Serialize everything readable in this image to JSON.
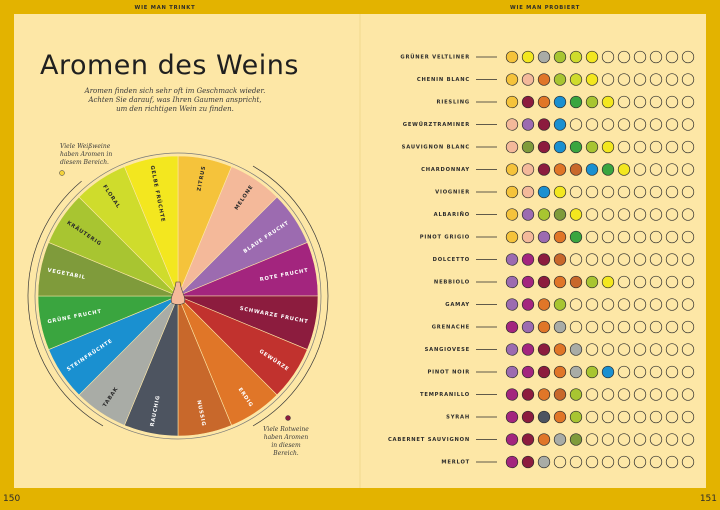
{
  "header": {
    "left": "WIE MAN TRINKT",
    "right": "WIE MAN PROBIERT"
  },
  "page_numbers": [
    "150",
    "151"
  ],
  "title": "Aromen des Weins",
  "subtitle": [
    "Aromen finden sich sehr oft im Geschmack wieder.",
    "Achten Sie darauf, was Ihren Gaumen anspricht,",
    "um den richtigen Wein zu finden."
  ],
  "notes": [
    {
      "lines": [
        "Viele Weißweine",
        "haben Aromen in",
        "diesem Bereich."
      ],
      "color": "#f3d23a"
    },
    {
      "lines": [
        "Viele Rotweine",
        "haben Aromen",
        "in diesem",
        "Bereich."
      ],
      "color": "#8c1c3e"
    }
  ],
  "wheel": {
    "segments": [
      {
        "label": "ZITRUS",
        "color": "#f5c33b"
      },
      {
        "label": "MELONE",
        "color": "#f4b99a"
      },
      {
        "label": "BLAUE FRUCHT",
        "color": "#9c6bb0"
      },
      {
        "label": "ROTE FRUCHT",
        "color": "#a3257e"
      },
      {
        "label": "SCHWARZE FRUCHT",
        "color": "#8c1c3e"
      },
      {
        "label": "GEWÜRZE",
        "color": "#c1322e"
      },
      {
        "label": "ERDIG",
        "color": "#e07628"
      },
      {
        "label": "NUSSIG",
        "color": "#c8682b"
      },
      {
        "label": "RAUCHIG",
        "color": "#4d5460"
      },
      {
        "label": "TABAK",
        "color": "#a9aca6"
      },
      {
        "label": "STEINFRÜCHTE",
        "color": "#1a90d0"
      },
      {
        "label": "GRÜNE FRUCHT",
        "color": "#3aa53f"
      },
      {
        "label": "VEGETABIL",
        "color": "#7f9b3b"
      },
      {
        "label": "KRÄUTERIG",
        "color": "#a8c531"
      },
      {
        "label": "FLORAL",
        "color": "#cfdc2c"
      },
      {
        "label": "GELBE FRÜCHTE",
        "color": "#f3e71f"
      }
    ]
  },
  "wines": [
    {
      "name": "GRÜNER VELTLINER",
      "dots": [
        "#f5c33b",
        "#f3e71f",
        "#a9aca6",
        "#a8c531",
        "#cfdc2c",
        "#f3e71f",
        null,
        null,
        null,
        null,
        null,
        null
      ]
    },
    {
      "name": "CHENIN BLANC",
      "dots": [
        "#f5c33b",
        "#f4b99a",
        "#e07628",
        "#a8c531",
        "#cfdc2c",
        "#f3e71f",
        null,
        null,
        null,
        null,
        null,
        null
      ]
    },
    {
      "name": "RIESLING",
      "dots": [
        "#f5c33b",
        "#8c1c3e",
        "#e07628",
        "#1a90d0",
        "#3aa53f",
        "#a8c531",
        "#f3e71f",
        null,
        null,
        null,
        null,
        null
      ]
    },
    {
      "name": "GEWÜRZTRAMINER",
      "dots": [
        "#f4b99a",
        "#9c6bb0",
        "#8c1c3e",
        "#1a90d0",
        null,
        null,
        null,
        null,
        null,
        null,
        null,
        null
      ]
    },
    {
      "name": "SAUVIGNON BLANC",
      "dots": [
        "#f4b99a",
        "#7f9b3b",
        "#8c1c3e",
        "#1a90d0",
        "#3aa53f",
        "#a8c531",
        "#f3e71f",
        null,
        null,
        null,
        null,
        null
      ]
    },
    {
      "name": "CHARDONNAY",
      "dots": [
        "#f5c33b",
        "#f4b99a",
        "#8c1c3e",
        "#e07628",
        "#c8682b",
        "#1a90d0",
        "#3aa53f",
        "#f3e71f",
        null,
        null,
        null,
        null
      ]
    },
    {
      "name": "VIOGNIER",
      "dots": [
        "#f5c33b",
        "#f4b99a",
        "#1a90d0",
        "#f3e71f",
        null,
        null,
        null,
        null,
        null,
        null,
        null,
        null
      ]
    },
    {
      "name": "ALBARIÑO",
      "dots": [
        "#f5c33b",
        "#9c6bb0",
        "#a8c531",
        "#7f9b3b",
        "#f3e71f",
        null,
        null,
        null,
        null,
        null,
        null,
        null
      ]
    },
    {
      "name": "PINOT GRIGIO",
      "dots": [
        "#f5c33b",
        "#f4b99a",
        "#9c6bb0",
        "#e07628",
        "#3aa53f",
        null,
        null,
        null,
        null,
        null,
        null,
        null
      ]
    },
    {
      "name": "DOLCETTO",
      "dots": [
        "#9c6bb0",
        "#a3257e",
        "#8c1c3e",
        "#c8682b",
        null,
        null,
        null,
        null,
        null,
        null,
        null,
        null
      ]
    },
    {
      "name": "NEBBIOLO",
      "dots": [
        "#9c6bb0",
        "#a3257e",
        "#8c1c3e",
        "#e07628",
        "#c8682b",
        "#a8c531",
        "#f3e71f",
        null,
        null,
        null,
        null,
        null
      ]
    },
    {
      "name": "GAMAY",
      "dots": [
        "#9c6bb0",
        "#a3257e",
        "#e07628",
        "#a8c531",
        null,
        null,
        null,
        null,
        null,
        null,
        null,
        null
      ]
    },
    {
      "name": "GRENACHE",
      "dots": [
        "#a3257e",
        "#9c6bb0",
        "#e07628",
        "#a9aca6",
        null,
        null,
        null,
        null,
        null,
        null,
        null,
        null
      ]
    },
    {
      "name": "SANGIOVESE",
      "dots": [
        "#9c6bb0",
        "#a3257e",
        "#8c1c3e",
        "#e07628",
        "#a9aca6",
        null,
        null,
        null,
        null,
        null,
        null,
        null
      ]
    },
    {
      "name": "PINOT NOIR",
      "dots": [
        "#9c6bb0",
        "#a3257e",
        "#8c1c3e",
        "#e07628",
        "#a9aca6",
        "#a8c531",
        "#1a90d0",
        null,
        null,
        null,
        null,
        null
      ]
    },
    {
      "name": "TEMPRANILLO",
      "dots": [
        "#a3257e",
        "#8c1c3e",
        "#e07628",
        "#c8682b",
        "#a8c531",
        null,
        null,
        null,
        null,
        null,
        null,
        null
      ]
    },
    {
      "name": "SYRAH",
      "dots": [
        "#a3257e",
        "#8c1c3e",
        "#4d5460",
        "#e07628",
        "#a8c531",
        null,
        null,
        null,
        null,
        null,
        null,
        null
      ]
    },
    {
      "name": "CABERNET SAUVIGNON",
      "dots": [
        "#a3257e",
        "#8c1c3e",
        "#e07628",
        "#a9aca6",
        "#7f9b3b",
        null,
        null,
        null,
        null,
        null,
        null,
        null
      ]
    },
    {
      "name": "MERLOT",
      "dots": [
        "#a3257e",
        "#8c1c3e",
        "#a9aca6",
        null,
        null,
        null,
        null,
        null,
        null,
        null,
        null,
        null
      ]
    }
  ]
}
